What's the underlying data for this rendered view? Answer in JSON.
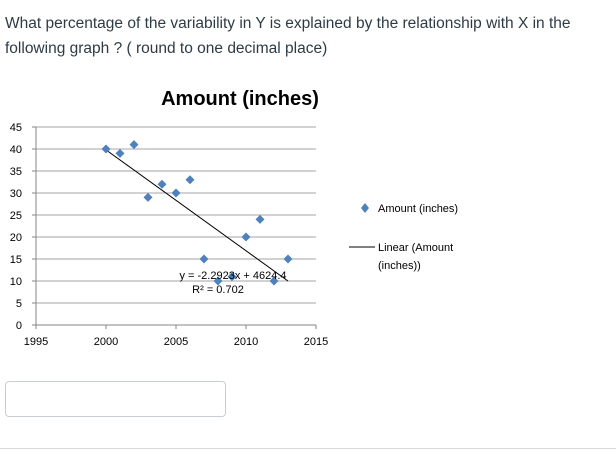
{
  "question": {
    "line1": "What percentage of the variability in Y is explained by the relationship with X in the",
    "line2": "following graph ? ( round to one decimal place)"
  },
  "answer": {
    "value": "",
    "placeholder": ""
  },
  "chart_data": {
    "type": "scatter",
    "title": "Amount (inches)",
    "xlabel": "",
    "ylabel": "",
    "xlim": [
      1995,
      2015
    ],
    "ylim": [
      0,
      45
    ],
    "x_ticks": [
      1995,
      2000,
      2005,
      2010,
      2015
    ],
    "y_ticks": [
      0,
      5,
      10,
      15,
      20,
      25,
      30,
      35,
      40,
      45
    ],
    "grid": true,
    "legend_position": "right",
    "series": [
      {
        "name": "Amount (inches)",
        "color": "#4f81bd",
        "marker": "diamond",
        "x": [
          2000,
          2001,
          2002,
          2003,
          2004,
          2005,
          2006,
          2007,
          2008,
          2009,
          2010,
          2011,
          2012,
          2013
        ],
        "y": [
          40,
          39,
          41,
          29,
          32,
          30,
          33,
          15,
          10,
          11,
          20,
          24,
          10,
          15
        ]
      }
    ],
    "trendline": {
      "name": "Linear (Amount (inches))",
      "color": "#000000",
      "slope": -2.2923,
      "intercept": 4624.4,
      "x_range": [
        2000,
        2013
      ]
    },
    "annotation": {
      "equation": "y = -2.2923x + 4624.4",
      "r_squared": "R² = 0.702"
    }
  }
}
